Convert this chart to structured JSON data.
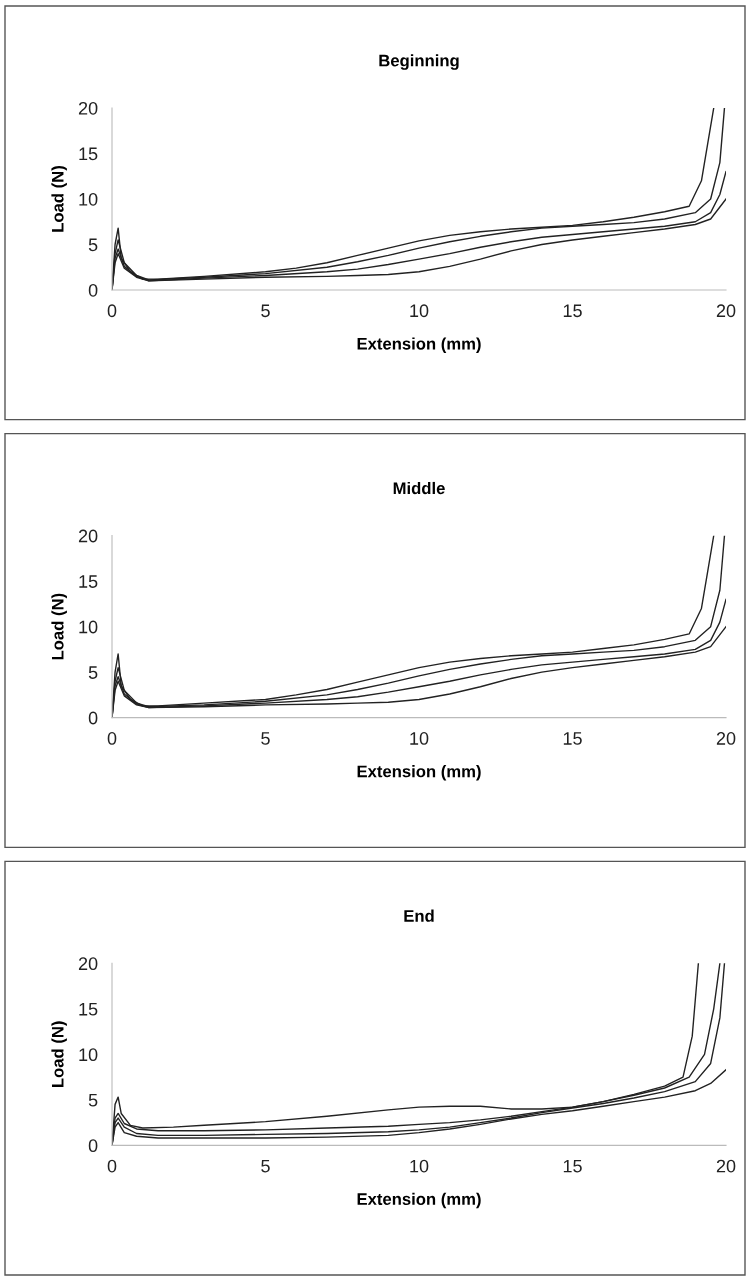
{
  "chart_data": [
    {
      "type": "line",
      "title": "Beginning",
      "xlabel": "Extension (mm)",
      "ylabel": "Load (N)",
      "xlim": [
        0,
        20
      ],
      "ylim": [
        0,
        20
      ],
      "xticks": [
        0,
        5,
        10,
        15,
        20
      ],
      "yticks": [
        0,
        5,
        10,
        15,
        20
      ],
      "grid": false,
      "legend": false,
      "series": [
        {
          "color": "#222222",
          "x": [
            0,
            0.1,
            0.2,
            0.3,
            0.6,
            1,
            1.5,
            3,
            5,
            6,
            7,
            8,
            9,
            10,
            11,
            12,
            13,
            14,
            15,
            16,
            17,
            18,
            18.8,
            19.2,
            19.4,
            19.6
          ],
          "values": [
            0,
            5,
            6.8,
            3.5,
            2,
            1.2,
            1.2,
            1.5,
            2,
            2.4,
            3,
            3.8,
            4.6,
            5.4,
            6,
            6.4,
            6.7,
            6.9,
            7.1,
            7.5,
            8,
            8.6,
            9.2,
            12,
            16,
            20
          ]
        },
        {
          "color": "#222222",
          "x": [
            0,
            0.1,
            0.2,
            0.4,
            0.8,
            1.2,
            3,
            5,
            7,
            8,
            9,
            10,
            11,
            12,
            13,
            14,
            15,
            16,
            17,
            18,
            19,
            19.5,
            19.8,
            19.95
          ],
          "values": [
            0,
            4,
            5.5,
            3,
            1.6,
            1.1,
            1.4,
            1.8,
            2.5,
            3.1,
            3.8,
            4.6,
            5.3,
            5.9,
            6.4,
            6.8,
            7,
            7.2,
            7.4,
            7.8,
            8.5,
            10,
            14,
            20
          ]
        },
        {
          "color": "#222222",
          "x": [
            0,
            0.1,
            0.2,
            0.4,
            0.8,
            1.2,
            3,
            5,
            7,
            8,
            9,
            10,
            11,
            12,
            13,
            14,
            15,
            16,
            17,
            18,
            19,
            19.5,
            19.8,
            20
          ],
          "values": [
            0,
            3.5,
            4.5,
            2.6,
            1.5,
            1,
            1.3,
            1.6,
            2,
            2.3,
            2.8,
            3.4,
            4,
            4.7,
            5.3,
            5.8,
            6.1,
            6.4,
            6.7,
            7,
            7.5,
            8.5,
            10.5,
            13
          ]
        },
        {
          "color": "#222222",
          "x": [
            0,
            0.1,
            0.2,
            0.4,
            0.8,
            1.2,
            3,
            5,
            7,
            8,
            9,
            10,
            11,
            12,
            13,
            14,
            15,
            16,
            17,
            18,
            19,
            19.5,
            20
          ],
          "values": [
            0,
            3,
            4,
            2.4,
            1.4,
            1,
            1.2,
            1.4,
            1.5,
            1.6,
            1.7,
            2,
            2.6,
            3.4,
            4.3,
            5,
            5.5,
            5.9,
            6.3,
            6.7,
            7.2,
            7.8,
            10
          ]
        }
      ]
    },
    {
      "type": "line",
      "title": "Middle",
      "xlabel": "Extension (mm)",
      "ylabel": "Load (N)",
      "xlim": [
        0,
        20
      ],
      "ylim": [
        0,
        20
      ],
      "xticks": [
        0,
        5,
        10,
        15,
        20
      ],
      "yticks": [
        0,
        5,
        10,
        15,
        20
      ],
      "grid": false,
      "legend": false,
      "series": [
        {
          "color": "#222222",
          "x": [
            0,
            0.1,
            0.2,
            0.3,
            0.6,
            1,
            1.5,
            3,
            5,
            6,
            7,
            8,
            9,
            10,
            11,
            12,
            13,
            14,
            15,
            16,
            17,
            18,
            18.8,
            19.2,
            19.4,
            19.6
          ],
          "values": [
            0,
            5,
            7,
            3.5,
            2,
            1.3,
            1.3,
            1.6,
            2,
            2.5,
            3.1,
            3.9,
            4.7,
            5.5,
            6.1,
            6.5,
            6.8,
            7,
            7.2,
            7.6,
            8,
            8.6,
            9.2,
            12,
            16,
            20
          ]
        },
        {
          "color": "#222222",
          "x": [
            0,
            0.1,
            0.2,
            0.4,
            0.8,
            1.2,
            3,
            5,
            7,
            8,
            9,
            10,
            11,
            12,
            13,
            14,
            15,
            16,
            17,
            18,
            19,
            19.5,
            19.8,
            19.95
          ],
          "values": [
            0,
            4,
            5.5,
            3,
            1.6,
            1.2,
            1.4,
            1.8,
            2.5,
            3.1,
            3.8,
            4.6,
            5.3,
            5.9,
            6.4,
            6.8,
            7,
            7.2,
            7.4,
            7.8,
            8.5,
            10,
            14,
            20
          ]
        },
        {
          "color": "#222222",
          "x": [
            0,
            0.1,
            0.2,
            0.4,
            0.8,
            1.2,
            3,
            5,
            7,
            8,
            9,
            10,
            11,
            12,
            13,
            14,
            15,
            16,
            17,
            18,
            19,
            19.5,
            19.8,
            20
          ],
          "values": [
            0,
            3.5,
            4.5,
            2.6,
            1.5,
            1.1,
            1.3,
            1.6,
            2,
            2.3,
            2.8,
            3.4,
            4,
            4.7,
            5.3,
            5.8,
            6.1,
            6.4,
            6.7,
            7,
            7.5,
            8.5,
            10.5,
            13
          ]
        },
        {
          "color": "#222222",
          "x": [
            0,
            0.1,
            0.2,
            0.4,
            0.8,
            1.2,
            3,
            5,
            7,
            8,
            9,
            10,
            11,
            12,
            13,
            14,
            15,
            16,
            17,
            18,
            19,
            19.5,
            20
          ],
          "values": [
            0,
            3,
            4,
            2.4,
            1.4,
            1.1,
            1.2,
            1.4,
            1.5,
            1.6,
            1.7,
            2,
            2.6,
            3.4,
            4.3,
            5,
            5.5,
            5.9,
            6.3,
            6.7,
            7.2,
            7.8,
            10
          ]
        }
      ]
    },
    {
      "type": "line",
      "title": "End",
      "xlabel": "Extension (mm)",
      "ylabel": "Load (N)",
      "xlim": [
        0,
        20
      ],
      "ylim": [
        0,
        20
      ],
      "xticks": [
        0,
        5,
        10,
        15,
        20
      ],
      "yticks": [
        0,
        5,
        10,
        15,
        20
      ],
      "grid": false,
      "legend": false,
      "series": [
        {
          "color": "#222222",
          "x": [
            0,
            0.1,
            0.2,
            0.3,
            0.6,
            1,
            2,
            3,
            5,
            7,
            9,
            10,
            11,
            12,
            13,
            14,
            15,
            16,
            17,
            18,
            18.6,
            18.9,
            19.1
          ],
          "values": [
            0,
            4.5,
            5.3,
            3.5,
            2.2,
            1.9,
            2,
            2.2,
            2.6,
            3.2,
            3.9,
            4.2,
            4.3,
            4.3,
            4,
            4,
            4.2,
            4.8,
            5.6,
            6.5,
            7.5,
            12,
            20
          ]
        },
        {
          "color": "#222222",
          "x": [
            0,
            0.1,
            0.2,
            0.4,
            0.8,
            1.5,
            3,
            5,
            7,
            9,
            10,
            11,
            12,
            13,
            14,
            15,
            16,
            17,
            18,
            18.8,
            19.3,
            19.6,
            19.8
          ],
          "values": [
            0,
            3,
            3.5,
            2.4,
            1.8,
            1.6,
            1.6,
            1.7,
            1.9,
            2.1,
            2.3,
            2.5,
            2.8,
            3.2,
            3.7,
            4.2,
            4.8,
            5.5,
            6.3,
            7.5,
            10,
            15,
            20
          ]
        },
        {
          "color": "#222222",
          "x": [
            0,
            0.1,
            0.2,
            0.4,
            0.8,
            1.5,
            3,
            5,
            7,
            9,
            10,
            11,
            12,
            13,
            14,
            15,
            16,
            17,
            18,
            19,
            19.5,
            19.8,
            19.95
          ],
          "values": [
            0,
            2.5,
            3,
            2,
            1.3,
            1.1,
            1.1,
            1.2,
            1.3,
            1.5,
            1.7,
            2,
            2.5,
            3,
            3.6,
            4.1,
            4.6,
            5.2,
            5.9,
            7,
            9,
            14,
            20
          ]
        },
        {
          "color": "#222222",
          "x": [
            0,
            0.1,
            0.2,
            0.4,
            0.8,
            1.5,
            3,
            5,
            7,
            9,
            10,
            11,
            12,
            13,
            14,
            15,
            16,
            17,
            18,
            19,
            19.5,
            20
          ],
          "values": [
            0,
            2,
            2.5,
            1.4,
            1,
            0.8,
            0.8,
            0.8,
            0.9,
            1.1,
            1.4,
            1.8,
            2.3,
            2.9,
            3.4,
            3.8,
            4.3,
            4.8,
            5.3,
            6,
            6.8,
            8.3
          ]
        }
      ]
    }
  ]
}
